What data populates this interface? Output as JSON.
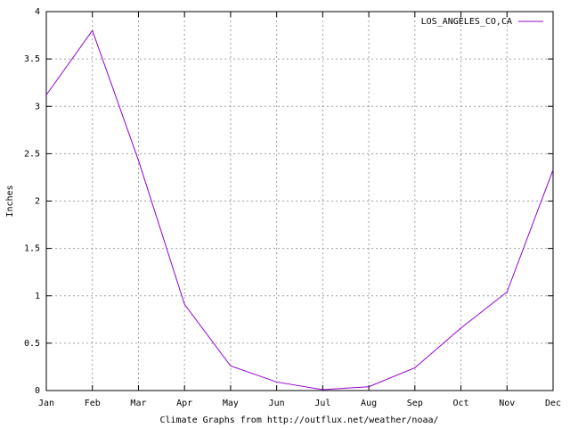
{
  "chart_data": {
    "type": "line",
    "x_label": "Climate Graphs from http://outflux.net/weather/noaa/",
    "y_label": "Inches",
    "categories": [
      "Jan",
      "Feb",
      "Mar",
      "Apr",
      "May",
      "Jun",
      "Jul",
      "Aug",
      "Sep",
      "Oct",
      "Nov",
      "Dec"
    ],
    "series": [
      {
        "name": "LOS_ANGELES_CO,CA",
        "color": "#9400d3",
        "values": [
          3.12,
          3.8,
          2.43,
          0.91,
          0.26,
          0.09,
          0.01,
          0.04,
          0.24,
          0.66,
          1.04,
          2.33
        ]
      }
    ],
    "ylim": [
      0,
      4
    ],
    "yticks": [
      0,
      0.5,
      1,
      1.5,
      2,
      2.5,
      3,
      3.5,
      4
    ],
    "grid": true,
    "legend": "top-right"
  }
}
